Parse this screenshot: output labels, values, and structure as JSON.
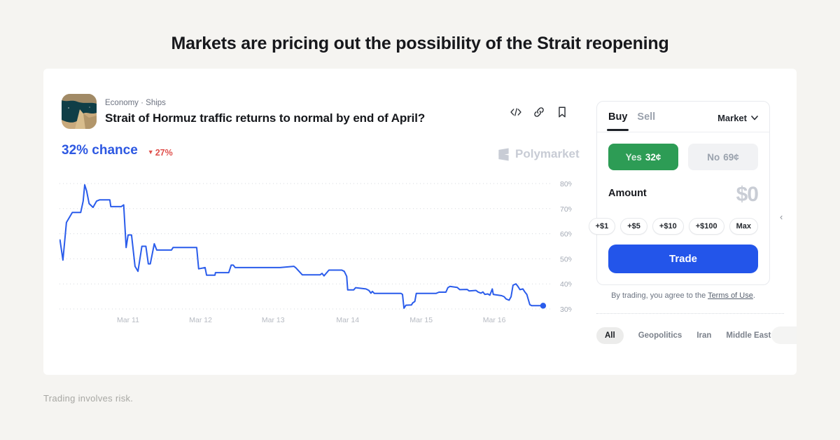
{
  "page": {
    "heading": "Markets are pricing out the possibility of the Strait reopening",
    "footer_disclaimer": "Trading involves risk."
  },
  "colors": {
    "accent_blue": "#2d58e2",
    "accent_blue_button": "#2355ea",
    "accent_green": "#2d9c55",
    "accent_red": "#e0514d",
    "chart_line": "#2a5ceb",
    "watermark_gray": "#c8ccd5"
  },
  "market_card": {
    "breadcrumb": "Economy · Ships",
    "title": "Strait of Hormuz traffic returns to normal by end of April?",
    "chance": {
      "value": "32% chance",
      "change": "27%",
      "direction": "down"
    },
    "watermark": "Polymarket",
    "toolbar_icons": [
      "embed-code-icon",
      "copy-link-icon",
      "bookmark-icon"
    ]
  },
  "chart_data": {
    "type": "line",
    "series_name": "Yes price (% chance)",
    "title": "",
    "xlabel": "",
    "ylabel": "",
    "ylim": [
      28,
      82
    ],
    "grid": "dotted horizontal",
    "legend_position": "none",
    "y_ticks": [
      80,
      70,
      60,
      50,
      40,
      30
    ],
    "y_tick_labels": [
      "80%",
      "70%",
      "60%",
      "50%",
      "40%",
      "30%"
    ],
    "x_tick_labels": [
      "Mar 11",
      "Mar 12",
      "Mar 13",
      "Mar 14",
      "Mar 15",
      "Mar 16"
    ],
    "x_tick_positions": [
      0.139,
      0.286,
      0.433,
      0.584,
      0.733,
      0.881
    ],
    "end_value": 31.3,
    "points": [
      [
        0.001,
        57.5
      ],
      [
        0.007,
        49.5
      ],
      [
        0.014,
        64.5
      ],
      [
        0.026,
        68.5
      ],
      [
        0.043,
        68.5
      ],
      [
        0.048,
        73
      ],
      [
        0.051,
        79.5
      ],
      [
        0.055,
        77
      ],
      [
        0.06,
        72
      ],
      [
        0.068,
        70.5
      ],
      [
        0.075,
        73
      ],
      [
        0.081,
        73.5
      ],
      [
        0.102,
        73.5
      ],
      [
        0.104,
        70.8
      ],
      [
        0.125,
        70.8
      ],
      [
        0.13,
        71.5
      ],
      [
        0.135,
        54.5
      ],
      [
        0.139,
        59.5
      ],
      [
        0.146,
        59.5
      ],
      [
        0.153,
        47
      ],
      [
        0.159,
        45
      ],
      [
        0.167,
        55
      ],
      [
        0.175,
        55
      ],
      [
        0.18,
        48
      ],
      [
        0.184,
        48
      ],
      [
        0.192,
        56
      ],
      [
        0.197,
        53.5
      ],
      [
        0.227,
        53.5
      ],
      [
        0.23,
        54.5
      ],
      [
        0.278,
        54.5
      ],
      [
        0.282,
        46
      ],
      [
        0.295,
        46.5
      ],
      [
        0.298,
        43.5
      ],
      [
        0.315,
        43.5
      ],
      [
        0.316,
        44.5
      ],
      [
        0.343,
        44.5
      ],
      [
        0.348,
        47.5
      ],
      [
        0.352,
        47.5
      ],
      [
        0.356,
        46.5
      ],
      [
        0.369,
        46.5
      ],
      [
        0.447,
        46.5
      ],
      [
        0.475,
        47
      ],
      [
        0.479,
        46.4
      ],
      [
        0.492,
        43.6
      ],
      [
        0.528,
        43.6
      ],
      [
        0.532,
        44.2
      ],
      [
        0.536,
        43.2
      ],
      [
        0.546,
        45.5
      ],
      [
        0.572,
        45.5
      ],
      [
        0.577,
        45
      ],
      [
        0.582,
        43
      ],
      [
        0.584,
        37.6
      ],
      [
        0.596,
        37.6
      ],
      [
        0.6,
        38.5
      ],
      [
        0.621,
        38
      ],
      [
        0.627,
        37.4
      ],
      [
        0.631,
        36.3
      ],
      [
        0.634,
        37
      ],
      [
        0.638,
        36.2
      ],
      [
        0.692,
        36.2
      ],
      [
        0.695,
        35.8
      ],
      [
        0.698,
        30.3
      ],
      [
        0.702,
        31.5
      ],
      [
        0.713,
        31.6
      ],
      [
        0.716,
        32.5
      ],
      [
        0.72,
        33
      ],
      [
        0.723,
        36.2
      ],
      [
        0.763,
        36.2
      ],
      [
        0.769,
        36.7
      ],
      [
        0.783,
        36.7
      ],
      [
        0.787,
        38.5
      ],
      [
        0.791,
        39
      ],
      [
        0.806,
        38.6
      ],
      [
        0.811,
        37.7
      ],
      [
        0.826,
        37.8
      ],
      [
        0.83,
        37.2
      ],
      [
        0.844,
        37.4
      ],
      [
        0.848,
        36.8
      ],
      [
        0.854,
        36.3
      ],
      [
        0.858,
        36.8
      ],
      [
        0.862,
        35.8
      ],
      [
        0.868,
        36
      ],
      [
        0.872,
        35.5
      ],
      [
        0.877,
        38
      ],
      [
        0.879,
        35.8
      ],
      [
        0.896,
        35.3
      ],
      [
        0.901,
        34.9
      ],
      [
        0.905,
        34
      ],
      [
        0.911,
        33.5
      ],
      [
        0.915,
        34.9
      ],
      [
        0.919,
        39.5
      ],
      [
        0.925,
        40
      ],
      [
        0.929,
        39
      ],
      [
        0.933,
        37.7
      ],
      [
        0.939,
        38
      ],
      [
        0.943,
        36.8
      ],
      [
        0.947,
        35.8
      ],
      [
        0.953,
        31.7
      ],
      [
        0.957,
        31.3
      ],
      [
        0.98,
        31.3
      ]
    ]
  },
  "trade_panel": {
    "tabs": [
      {
        "label": "Buy",
        "active": true
      },
      {
        "label": "Sell",
        "active": false
      }
    ],
    "order_type": "Market",
    "yes_label": "Yes",
    "yes_price": "32¢",
    "no_label": "No",
    "no_price": "69¢",
    "amount_label": "Amount",
    "amount_value": "$0",
    "quick_amounts": [
      "+$1",
      "+$5",
      "+$10",
      "+$100",
      "Max"
    ],
    "trade_button": "Trade",
    "terms_prefix": "By trading, you agree to the ",
    "terms_link": "Terms of Use",
    "terms_suffix": "."
  },
  "tags": [
    {
      "label": "All",
      "active": true
    },
    {
      "label": "Geopolitics",
      "active": false
    },
    {
      "label": "Iran",
      "active": false
    },
    {
      "label": "Middle East",
      "active": false
    }
  ]
}
